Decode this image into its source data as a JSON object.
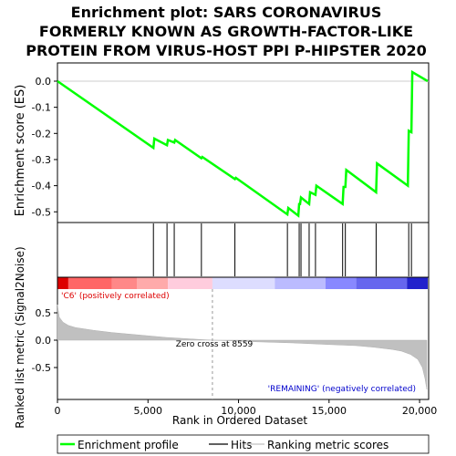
{
  "chart_data": {
    "type": "line",
    "title": "Enrichment plot: SARS CORONAVIRUS FORMERLY KNOWN AS GROWTH-FACTOR-LIKE PROTEIN FROM VIRUS-HOST PPI P-HIPSTER 2020",
    "title_lines": [
      "Enrichment plot: SARS CORONAVIRUS",
      "FORMERLY KNOWN AS GROWTH-FACTOR-LIKE",
      "PROTEIN FROM VIRUS-HOST PPI P-HIPSTER 2020"
    ],
    "xlabel": "Rank in Ordered Dataset",
    "ylabel_top": "Enrichment score (ES)",
    "ylabel_bottom": "Ranked list metric (Signal2Noise)",
    "xlim": [
      0,
      20500
    ],
    "x_ticks": [
      0,
      5000,
      10000,
      15000,
      20000
    ],
    "x_tick_labels": [
      "0",
      "5,000",
      "10,000",
      "15,000",
      "20,000"
    ],
    "es_ylim": [
      -0.55,
      0.05
    ],
    "es_ticks": [
      0.0,
      -0.1,
      -0.2,
      -0.3,
      -0.4,
      -0.5
    ],
    "es_tick_labels": [
      "0.0",
      "-0.1",
      "-0.2",
      "-0.3",
      "-0.4",
      "-0.5"
    ],
    "metric_ylim": [
      -0.9,
      0.7
    ],
    "metric_ticks": [
      0.5,
      0.0,
      -0.5
    ],
    "metric_tick_labels": [
      "0.5",
      "0.0",
      "-0.5"
    ],
    "series": [
      {
        "name": "Enrichment profile",
        "color": "#00ff00",
        "x": [
          0,
          5300,
          5350,
          6050,
          6100,
          6450,
          6500,
          7950,
          8000,
          9800,
          9850,
          12700,
          12750,
          13300,
          13350,
          13400,
          13450,
          13900,
          13950,
          14250,
          14300,
          15750,
          15800,
          15900,
          15950,
          17600,
          17650,
          19350,
          19400,
          19550,
          19600,
          20450
        ],
        "y": [
          0.0,
          -0.255,
          -0.22,
          -0.245,
          -0.225,
          -0.235,
          -0.225,
          -0.295,
          -0.29,
          -0.375,
          -0.37,
          -0.51,
          -0.485,
          -0.515,
          -0.47,
          -0.47,
          -0.445,
          -0.47,
          -0.425,
          -0.435,
          -0.4,
          -0.47,
          -0.405,
          -0.405,
          -0.34,
          -0.425,
          -0.315,
          -0.4,
          -0.19,
          -0.195,
          0.035,
          0.0
        ]
      }
    ],
    "hits": [
      5300,
      6050,
      6450,
      7950,
      9800,
      12700,
      13350,
      13450,
      13900,
      14250,
      15750,
      15900,
      17600,
      19400,
      19550
    ],
    "hits_legend": "Hits",
    "metric_legend": "Ranking metric scores",
    "metric_curve": {
      "x": [
        0,
        100,
        300,
        600,
        1000,
        2000,
        3000,
        4000,
        5000,
        6000,
        7000,
        8000,
        8559,
        9500,
        11000,
        13000,
        15000,
        16500,
        17500,
        18500,
        19000,
        19500,
        19900,
        20150,
        20300,
        20400
      ],
      "y": [
        0.65,
        0.42,
        0.33,
        0.27,
        0.23,
        0.18,
        0.14,
        0.11,
        0.08,
        0.05,
        0.03,
        0.01,
        0.0,
        -0.01,
        -0.03,
        -0.05,
        -0.08,
        -0.1,
        -0.13,
        -0.17,
        -0.2,
        -0.26,
        -0.35,
        -0.5,
        -0.7,
        -0.9
      ]
    },
    "color_bar": [
      {
        "from": 0,
        "to": 600,
        "color": "#dd0000"
      },
      {
        "from": 600,
        "to": 3000,
        "color": "#ff6666"
      },
      {
        "from": 3000,
        "to": 4400,
        "color": "#ff8888"
      },
      {
        "from": 4400,
        "to": 6100,
        "color": "#ffaaaa"
      },
      {
        "from": 6100,
        "to": 8559,
        "color": "#ffccdd"
      },
      {
        "from": 8559,
        "to": 12000,
        "color": "#ddddff"
      },
      {
        "from": 12000,
        "to": 14800,
        "color": "#bbbbff"
      },
      {
        "from": 14800,
        "to": 16500,
        "color": "#8888ff"
      },
      {
        "from": 16500,
        "to": 19300,
        "color": "#6666ee"
      },
      {
        "from": 19300,
        "to": 20450,
        "color": "#2222cc"
      }
    ],
    "annotations": {
      "positive": "'C6' (positively correlated)",
      "negative": "'REMAINING' (negatively correlated)",
      "zero_cross_label": "Zero cross at 8559",
      "zero_cross": 8559
    }
  }
}
